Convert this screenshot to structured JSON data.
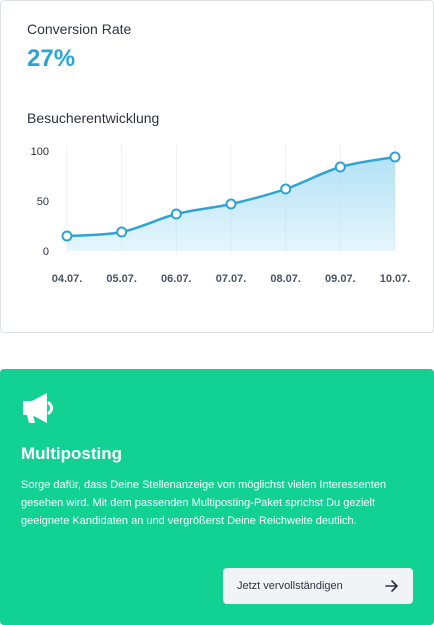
{
  "stats": {
    "title": "Conversion Rate",
    "value": "27%"
  },
  "chart_data": {
    "type": "area",
    "title": "Besucherentwicklung",
    "categories": [
      "04.07.",
      "05.07.",
      "06.07.",
      "07.07.",
      "08.07.",
      "09.07.",
      "10.07."
    ],
    "values": [
      15,
      19,
      37,
      47,
      62,
      84,
      94
    ],
    "yticks": [
      0,
      50,
      100
    ],
    "ylim": [
      0,
      100
    ],
    "grid": "vertical",
    "line_color": "#2fa3d6",
    "fill_color": "#aee0f5"
  },
  "promo": {
    "icon": "megaphone-icon",
    "title": "Multiposting",
    "text": "Sorge dafür, dass Deine Stellenanzeige von möglichst vielen Interessenten gesehen wird. Mit dem passenden Multiposting-Paket sprichst Du gezielt geeignete Kandidaten an und vergrößerst Deine Reichweite deutlich.",
    "button_label": "Jetzt vervollständigen",
    "background": "#11d193"
  }
}
